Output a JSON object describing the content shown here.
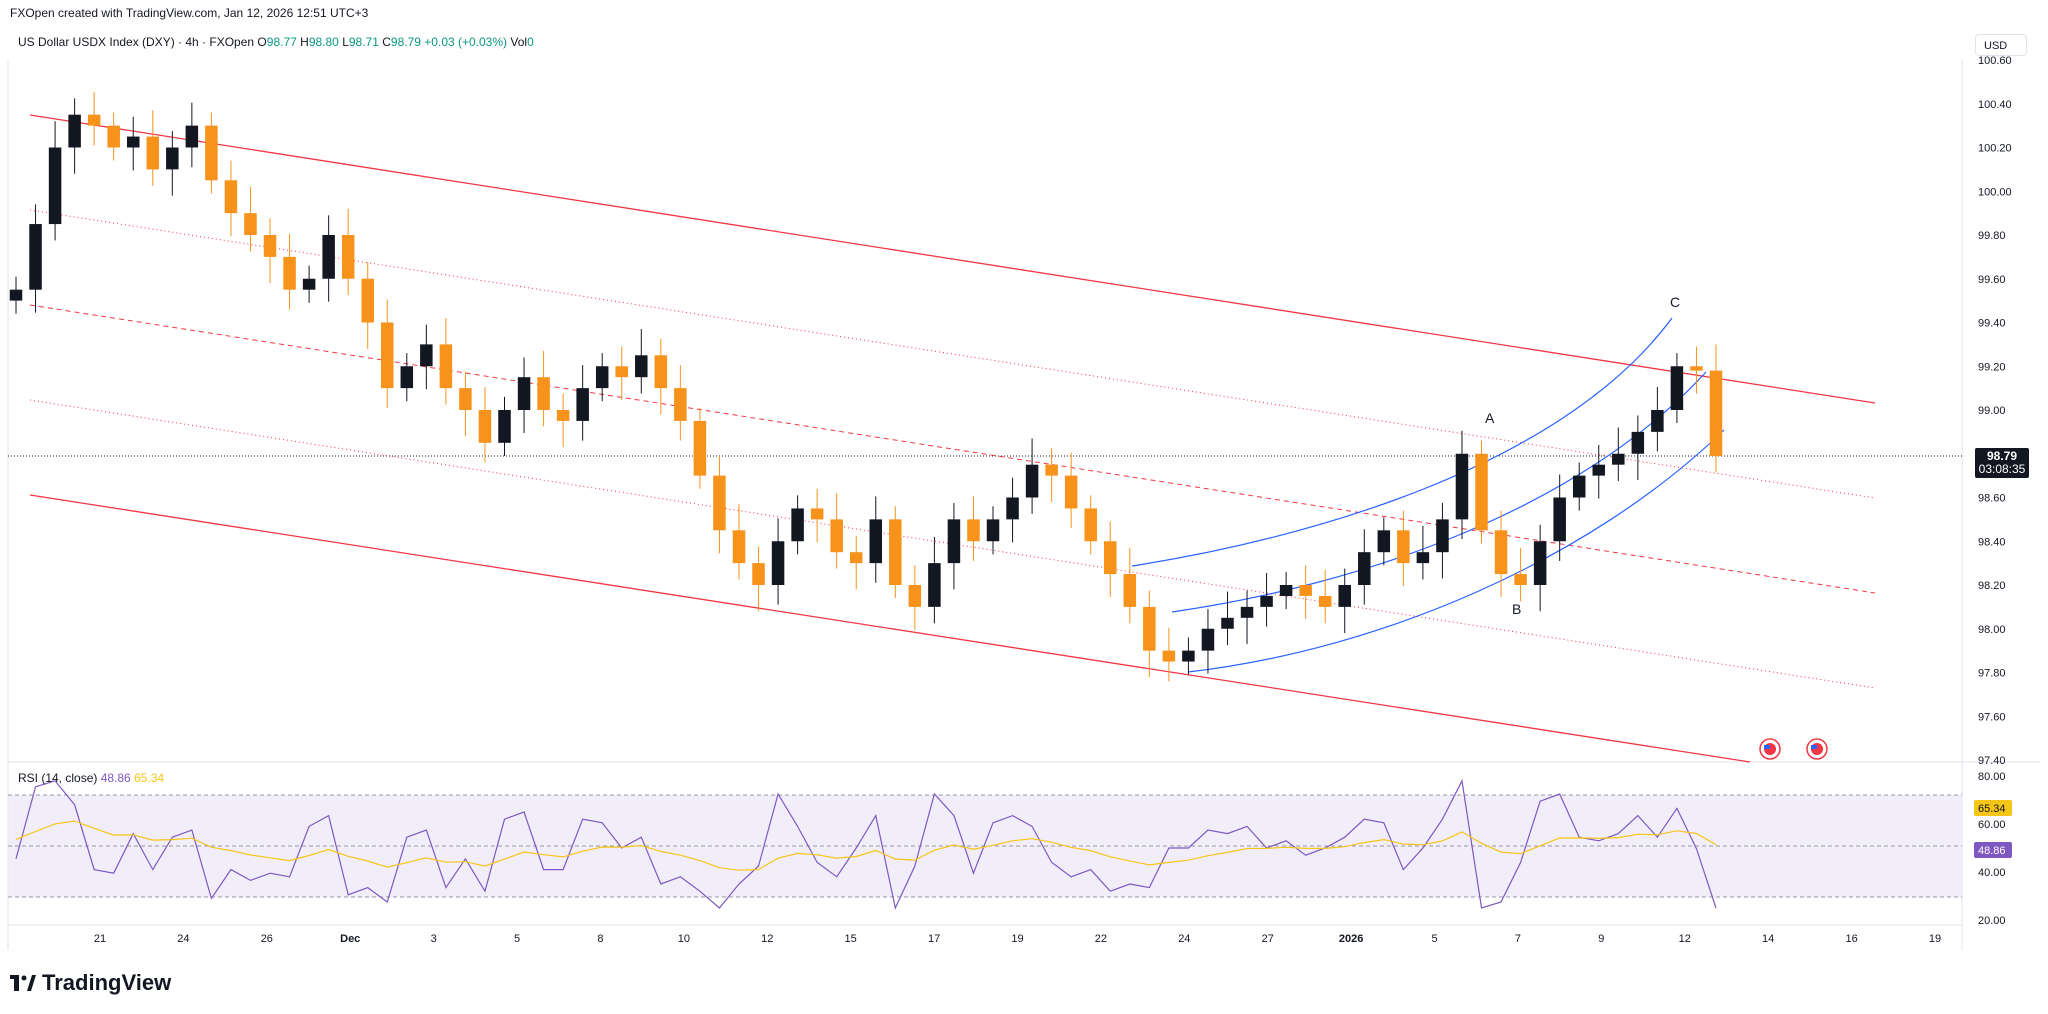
{
  "header": {
    "created_line": "FXOpen created with TradingView.com, Jan 12, 2026 12:51 UTC+3"
  },
  "legend": {
    "symbol": "US Dollar USDX Index (DXY) · 4h · FXOpen",
    "o_label": "O",
    "o_value": "98.77",
    "h_label": "H",
    "h_value": "98.80",
    "l_label": "L",
    "l_value": "98.71",
    "c_label": "C",
    "c_value": "98.79",
    "change": "+0.03 (+0.03%)",
    "vol_label": "Vol",
    "vol_value": "0"
  },
  "currency_button": "USD",
  "last_price": {
    "price": "98.79",
    "countdown": "03:08:35"
  },
  "rsi": {
    "label": "RSI (14, close)",
    "value": "48.86",
    "ma_value": "65.34",
    "axis_ticks": [
      "80.00",
      "60.00",
      "40.00",
      "20.00"
    ],
    "tag_rsi": "48.86",
    "tag_ma": "65.34"
  },
  "price_axis_ticks": [
    "100.60",
    "100.40",
    "100.20",
    "100.00",
    "99.80",
    "99.60",
    "99.40",
    "99.20",
    "99.00",
    "98.60",
    "98.40",
    "98.20",
    "98.00",
    "97.80",
    "97.60",
    "97.40"
  ],
  "time_axis_ticks": [
    "21",
    "24",
    "26",
    "Dec",
    "3",
    "5",
    "8",
    "10",
    "12",
    "15",
    "17",
    "19",
    "22",
    "24",
    "27",
    "2026",
    "5",
    "7",
    "9",
    "12",
    "14",
    "16",
    "19"
  ],
  "wave_labels": {
    "a": "A",
    "b": "B",
    "c": "C"
  },
  "colors": {
    "bull": "#131722",
    "bear": "#f7931a",
    "channel": "#f23645",
    "arc": "#2962ff",
    "rsi_line": "#7e57c2",
    "rsi_ma": "#f5c518",
    "rsi_band": "#ede7f6"
  },
  "logo": {
    "text": "TradingView"
  },
  "chart_data": {
    "type": "candlestick",
    "timeframe": "4h",
    "ylim": [
      97.4,
      100.6
    ],
    "last_close": 98.79,
    "closes": [
      99.55,
      99.85,
      100.2,
      100.35,
      100.3,
      100.2,
      100.25,
      100.1,
      100.2,
      100.3,
      100.05,
      99.9,
      99.8,
      99.7,
      99.55,
      99.6,
      99.8,
      99.6,
      99.4,
      99.1,
      99.2,
      99.3,
      99.1,
      99.0,
      98.85,
      99.0,
      99.15,
      99.0,
      98.95,
      99.1,
      99.2,
      99.15,
      99.25,
      99.1,
      98.95,
      98.7,
      98.45,
      98.3,
      98.2,
      98.4,
      98.55,
      98.5,
      98.35,
      98.3,
      98.5,
      98.2,
      98.1,
      98.3,
      98.5,
      98.4,
      98.5,
      98.6,
      98.75,
      98.7,
      98.55,
      98.4,
      98.25,
      98.1,
      97.9,
      97.85,
      97.9,
      98.0,
      98.05,
      98.1,
      98.15,
      98.2,
      98.15,
      98.1,
      98.2,
      98.35,
      98.45,
      98.3,
      98.35,
      98.5,
      98.8,
      98.45,
      98.25,
      98.2,
      98.4,
      98.6,
      98.7,
      98.75,
      98.8,
      98.9,
      99.0,
      99.2,
      99.18,
      98.79
    ]
  }
}
